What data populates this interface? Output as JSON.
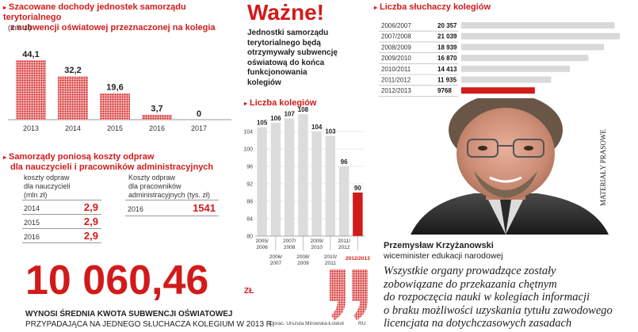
{
  "colors": {
    "accent": "#d21a1a",
    "grey_bar": "#d9d9d9",
    "text": "#222222"
  },
  "revenue": {
    "title_line1": "Szacowane dochody jednostek samorządu terytorialnego",
    "title_line2": "z subwencji oświatowej przeznaczonej na kolegia",
    "unit": "(mln zł)"
  },
  "important": {
    "heading": "Ważne!",
    "line1": "Jednostki samorządu",
    "line2": "terytorialnego będą",
    "line3": "otrzymywały subwencję",
    "line4": "oświatową do końca",
    "line5": "funkcjonowania",
    "line6": "kolegiów"
  },
  "students": {
    "title": "Liczba słuchaczy kolegiów",
    "rows": [
      {
        "year": "2006/2007",
        "value": "20 357"
      },
      {
        "year": "2007/2008",
        "value": "21 039"
      },
      {
        "year": "2008/2009",
        "value": "18 939"
      },
      {
        "year": "2009/2010",
        "value": "16 870"
      },
      {
        "year": "2010/2011",
        "value": "14 413"
      },
      {
        "year": "2011/2012",
        "value": "11 935"
      },
      {
        "year": "2012/2013",
        "value": "9768"
      }
    ]
  },
  "colleges": {
    "title": "Liczba kolegiów"
  },
  "severance": {
    "title_line1": "Samorządy poniosą koszty odpraw",
    "title_line2": "dla nauczycieli i pracowników administracyjnych",
    "left_head1": "koszty odpraw",
    "left_head2": "dla nauczycieli",
    "left_head3": "(mln zł)",
    "left_rows": [
      {
        "year": "2014",
        "value": "2,9"
      },
      {
        "year": "2015",
        "value": "2,9"
      },
      {
        "year": "2016",
        "value": "2,9"
      }
    ],
    "right_head1": "Koszty odpraw",
    "right_head2": "dla pracowników",
    "right_head3": "administracyjnych (tys. zł)",
    "right_rows": [
      {
        "year": "2016",
        "value": "1541"
      }
    ]
  },
  "big_number": {
    "value": "10 060,46",
    "unit": "ZŁ",
    "caption1": "WYNOSI ŚREDNIA KWOTA SUBWENCJI OŚWIATOWEJ",
    "caption2": "PRZYPADAJĄCA NA JEDNEGO SŁUCHACZA KOLEGIUM W 2013 R."
  },
  "credit": {
    "author": "Oprac. Urszula Mirowska-Łoskot",
    "initials": "RU"
  },
  "photo": {
    "caption": "MATERIAŁY PRASOWE"
  },
  "person": {
    "name": "Przemysław Krzyżanowski",
    "role": "wiceminister edukacji narodowej"
  },
  "quote": {
    "line1": "Wszystkie organy prowadzące zostały",
    "line2": "zobowiązane do przekazania chętnym",
    "line3": "do rozpoczęcia nauki w kolegiach informacji",
    "line4": "o braku możliwości uzyskania tytułu zawodowego",
    "line5": "licencjata na dotychczasowych zasadach"
  },
  "chart_data": [
    {
      "type": "bar",
      "title": "Szacowane dochody jednostek samorządu terytorialnego z subwencji oświatowej przeznaczonej na kolegia",
      "ylabel": "(mln zł)",
      "categories": [
        "2013",
        "2014",
        "2015",
        "2016",
        "2017"
      ],
      "values": [
        44.1,
        32.2,
        19.6,
        3.7,
        0
      ],
      "value_labels": [
        "44,1",
        "32,2",
        "19,6",
        "3,7",
        "0"
      ],
      "ylim": [
        0,
        44.1
      ],
      "grid": false
    },
    {
      "type": "bar",
      "title": "Liczba kolegiów",
      "categories": [
        "2005/2006",
        "2006/2007",
        "2007/2008",
        "2008/2009",
        "2009/2010",
        "2010/2011",
        "2011/2012",
        "2012/2013"
      ],
      "values": [
        105,
        106,
        107,
        108,
        104,
        103,
        96,
        90
      ],
      "yticks": [
        80,
        84,
        88,
        92,
        96,
        100,
        104
      ],
      "ylim": [
        80,
        108
      ],
      "grid": true,
      "highlight": "2012/2013"
    },
    {
      "type": "bar",
      "orientation": "horizontal",
      "title": "Liczba słuchaczy kolegiów",
      "categories": [
        "2006/2007",
        "2007/2008",
        "2008/2009",
        "2009/2010",
        "2010/2011",
        "2011/2012",
        "2012/2013"
      ],
      "values": [
        20357,
        21039,
        18939,
        16870,
        14413,
        11935,
        9768
      ],
      "highlight": "2012/2013"
    }
  ]
}
